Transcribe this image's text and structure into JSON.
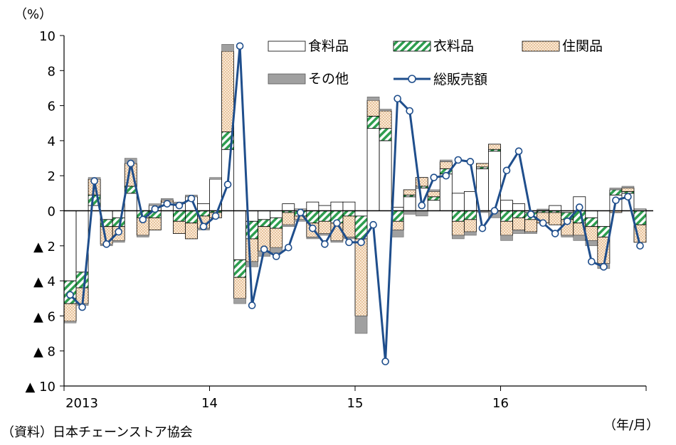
{
  "chart_data": {
    "type": "bar",
    "stacked": true,
    "y_unit_label": "（%）",
    "x_unit_label": "（年/月）",
    "source_note": "（資料）日本チェーンストア協会",
    "ylim": [
      -10,
      10
    ],
    "yticks": [
      -10,
      -8,
      -6,
      -4,
      -2,
      0,
      2,
      4,
      6,
      8,
      10
    ],
    "ytick_labels": [
      "▲ 10",
      "▲ 8",
      "▲ 6",
      "▲ 4",
      "▲ 2",
      "0",
      "2",
      "4",
      "6",
      "8",
      "10"
    ],
    "x_tick_labels": [
      {
        "index": 0,
        "label": "2013"
      },
      {
        "index": 12,
        "label": "14"
      },
      {
        "index": 24,
        "label": "15"
      },
      {
        "index": 36,
        "label": "16"
      }
    ],
    "months": 48,
    "legend_position": "top-right",
    "series": [
      {
        "name": "食料品",
        "key": "food",
        "pattern": "plain",
        "color": "#ffffff",
        "values": [
          -4.0,
          -3.5,
          0.3,
          -0.5,
          -0.4,
          1.0,
          0.0,
          0.3,
          0.5,
          0.4,
          0.8,
          0.4,
          1.8,
          3.5,
          -2.8,
          -0.6,
          -0.5,
          -0.4,
          0.4,
          0.1,
          0.5,
          0.3,
          0.5,
          0.5,
          -0.3,
          4.7,
          4.0,
          0.2,
          0.8,
          1.3,
          0.6,
          2.1,
          1.0,
          1.1,
          2.4,
          3.4,
          0.6,
          0.4,
          -0.1,
          0.0,
          0.3,
          -0.1,
          0.8,
          -0.4,
          -0.9,
          0.9,
          1.0,
          0.1
        ]
      },
      {
        "name": "衣料品",
        "key": "clothing",
        "pattern": "green-hatch",
        "color": "#2e9e4f",
        "values": [
          -1.3,
          -0.9,
          0.6,
          -0.4,
          -0.5,
          0.4,
          -0.4,
          -0.4,
          0.0,
          -0.6,
          -0.7,
          -0.3,
          -0.1,
          1.0,
          -1.0,
          -1.0,
          -0.4,
          -0.6,
          -0.1,
          -0.3,
          -0.7,
          -0.6,
          -0.7,
          -0.3,
          -1.3,
          0.7,
          0.7,
          -0.6,
          0.1,
          0.1,
          0.2,
          0.3,
          -0.6,
          -0.5,
          0.1,
          0.1,
          -0.6,
          -0.4,
          -0.4,
          -0.1,
          -0.1,
          -0.4,
          -0.7,
          -0.5,
          -0.6,
          0.3,
          0.1,
          -0.8
        ]
      },
      {
        "name": "住関品",
        "key": "household",
        "pattern": "dotted",
        "color": "#f5e3c8",
        "values": [
          -1.0,
          -0.9,
          0.9,
          -1.0,
          -0.8,
          1.3,
          -1.0,
          -0.7,
          0.1,
          -0.7,
          -0.9,
          -0.7,
          -0.3,
          4.6,
          -1.2,
          -1.3,
          -1.4,
          -1.1,
          -0.7,
          -0.2,
          -0.8,
          -0.7,
          -1.0,
          -1.2,
          -4.4,
          0.9,
          1.0,
          -0.5,
          0.3,
          0.5,
          0.3,
          0.4,
          -0.8,
          -0.7,
          0.2,
          0.3,
          -0.8,
          -0.7,
          -0.7,
          -0.6,
          -0.7,
          -0.9,
          -0.7,
          -0.8,
          -1.5,
          -0.1,
          0.2,
          -1.0
        ]
      },
      {
        "name": "その他",
        "key": "other",
        "pattern": "gray",
        "color": "#a0a0a0",
        "values": [
          -0.1,
          -0.1,
          0.1,
          -0.1,
          -0.1,
          0.3,
          -0.1,
          0.1,
          0.1,
          0.1,
          0.1,
          -0.1,
          0.1,
          0.4,
          -0.3,
          -0.3,
          -0.3,
          -0.3,
          -0.1,
          -0.1,
          -0.1,
          -0.1,
          -0.1,
          -0.1,
          -1.0,
          0.2,
          0.1,
          -0.4,
          -0.2,
          -0.3,
          0.1,
          0.1,
          -0.2,
          -0.2,
          -0.1,
          -0.4,
          -0.3,
          -0.2,
          -0.1,
          0.1,
          0.0,
          -0.1,
          -0.3,
          -0.3,
          -0.3,
          0.1,
          0.1,
          0.0
        ]
      }
    ],
    "line": {
      "name": "総販売額",
      "color": "#1f4e8c",
      "marker_fill": "#ffffff",
      "values": [
        -4.8,
        -5.5,
        1.7,
        -1.9,
        -1.2,
        2.7,
        -0.5,
        0.1,
        0.4,
        0.3,
        0.7,
        -0.9,
        -0.3,
        1.5,
        9.4,
        -5.4,
        -2.2,
        -2.6,
        -2.1,
        -0.1,
        -1.0,
        -1.9,
        -0.7,
        -1.8,
        -1.8,
        -0.8,
        -8.6,
        6.4,
        5.7,
        0.3,
        1.9,
        2.0,
        2.9,
        2.8,
        -1.0,
        0.0,
        2.3,
        3.4,
        -0.2,
        -0.7,
        -1.3,
        -0.6,
        0.2,
        -2.9,
        -3.2,
        0.6,
        0.8,
        -2.0
      ]
    }
  }
}
